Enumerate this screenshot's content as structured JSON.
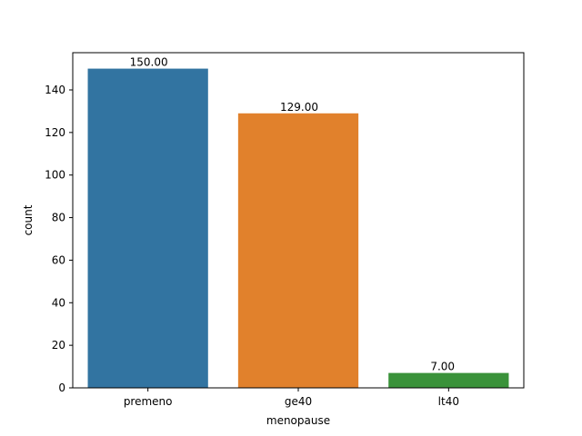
{
  "chart_data": {
    "type": "bar",
    "categories": [
      "premeno",
      "ge40",
      "lt40"
    ],
    "values": [
      150,
      129,
      7
    ],
    "data_labels": [
      "150.00",
      "129.00",
      "7.00"
    ],
    "colors": [
      "#3274a1",
      "#e1812c",
      "#3a923a"
    ],
    "title": "",
    "xlabel": "menopause",
    "ylabel": "count",
    "ylim": [
      0,
      157.5
    ],
    "yticks": [
      0,
      20,
      40,
      60,
      80,
      100,
      120,
      140
    ],
    "grid": false,
    "legend": "none"
  }
}
